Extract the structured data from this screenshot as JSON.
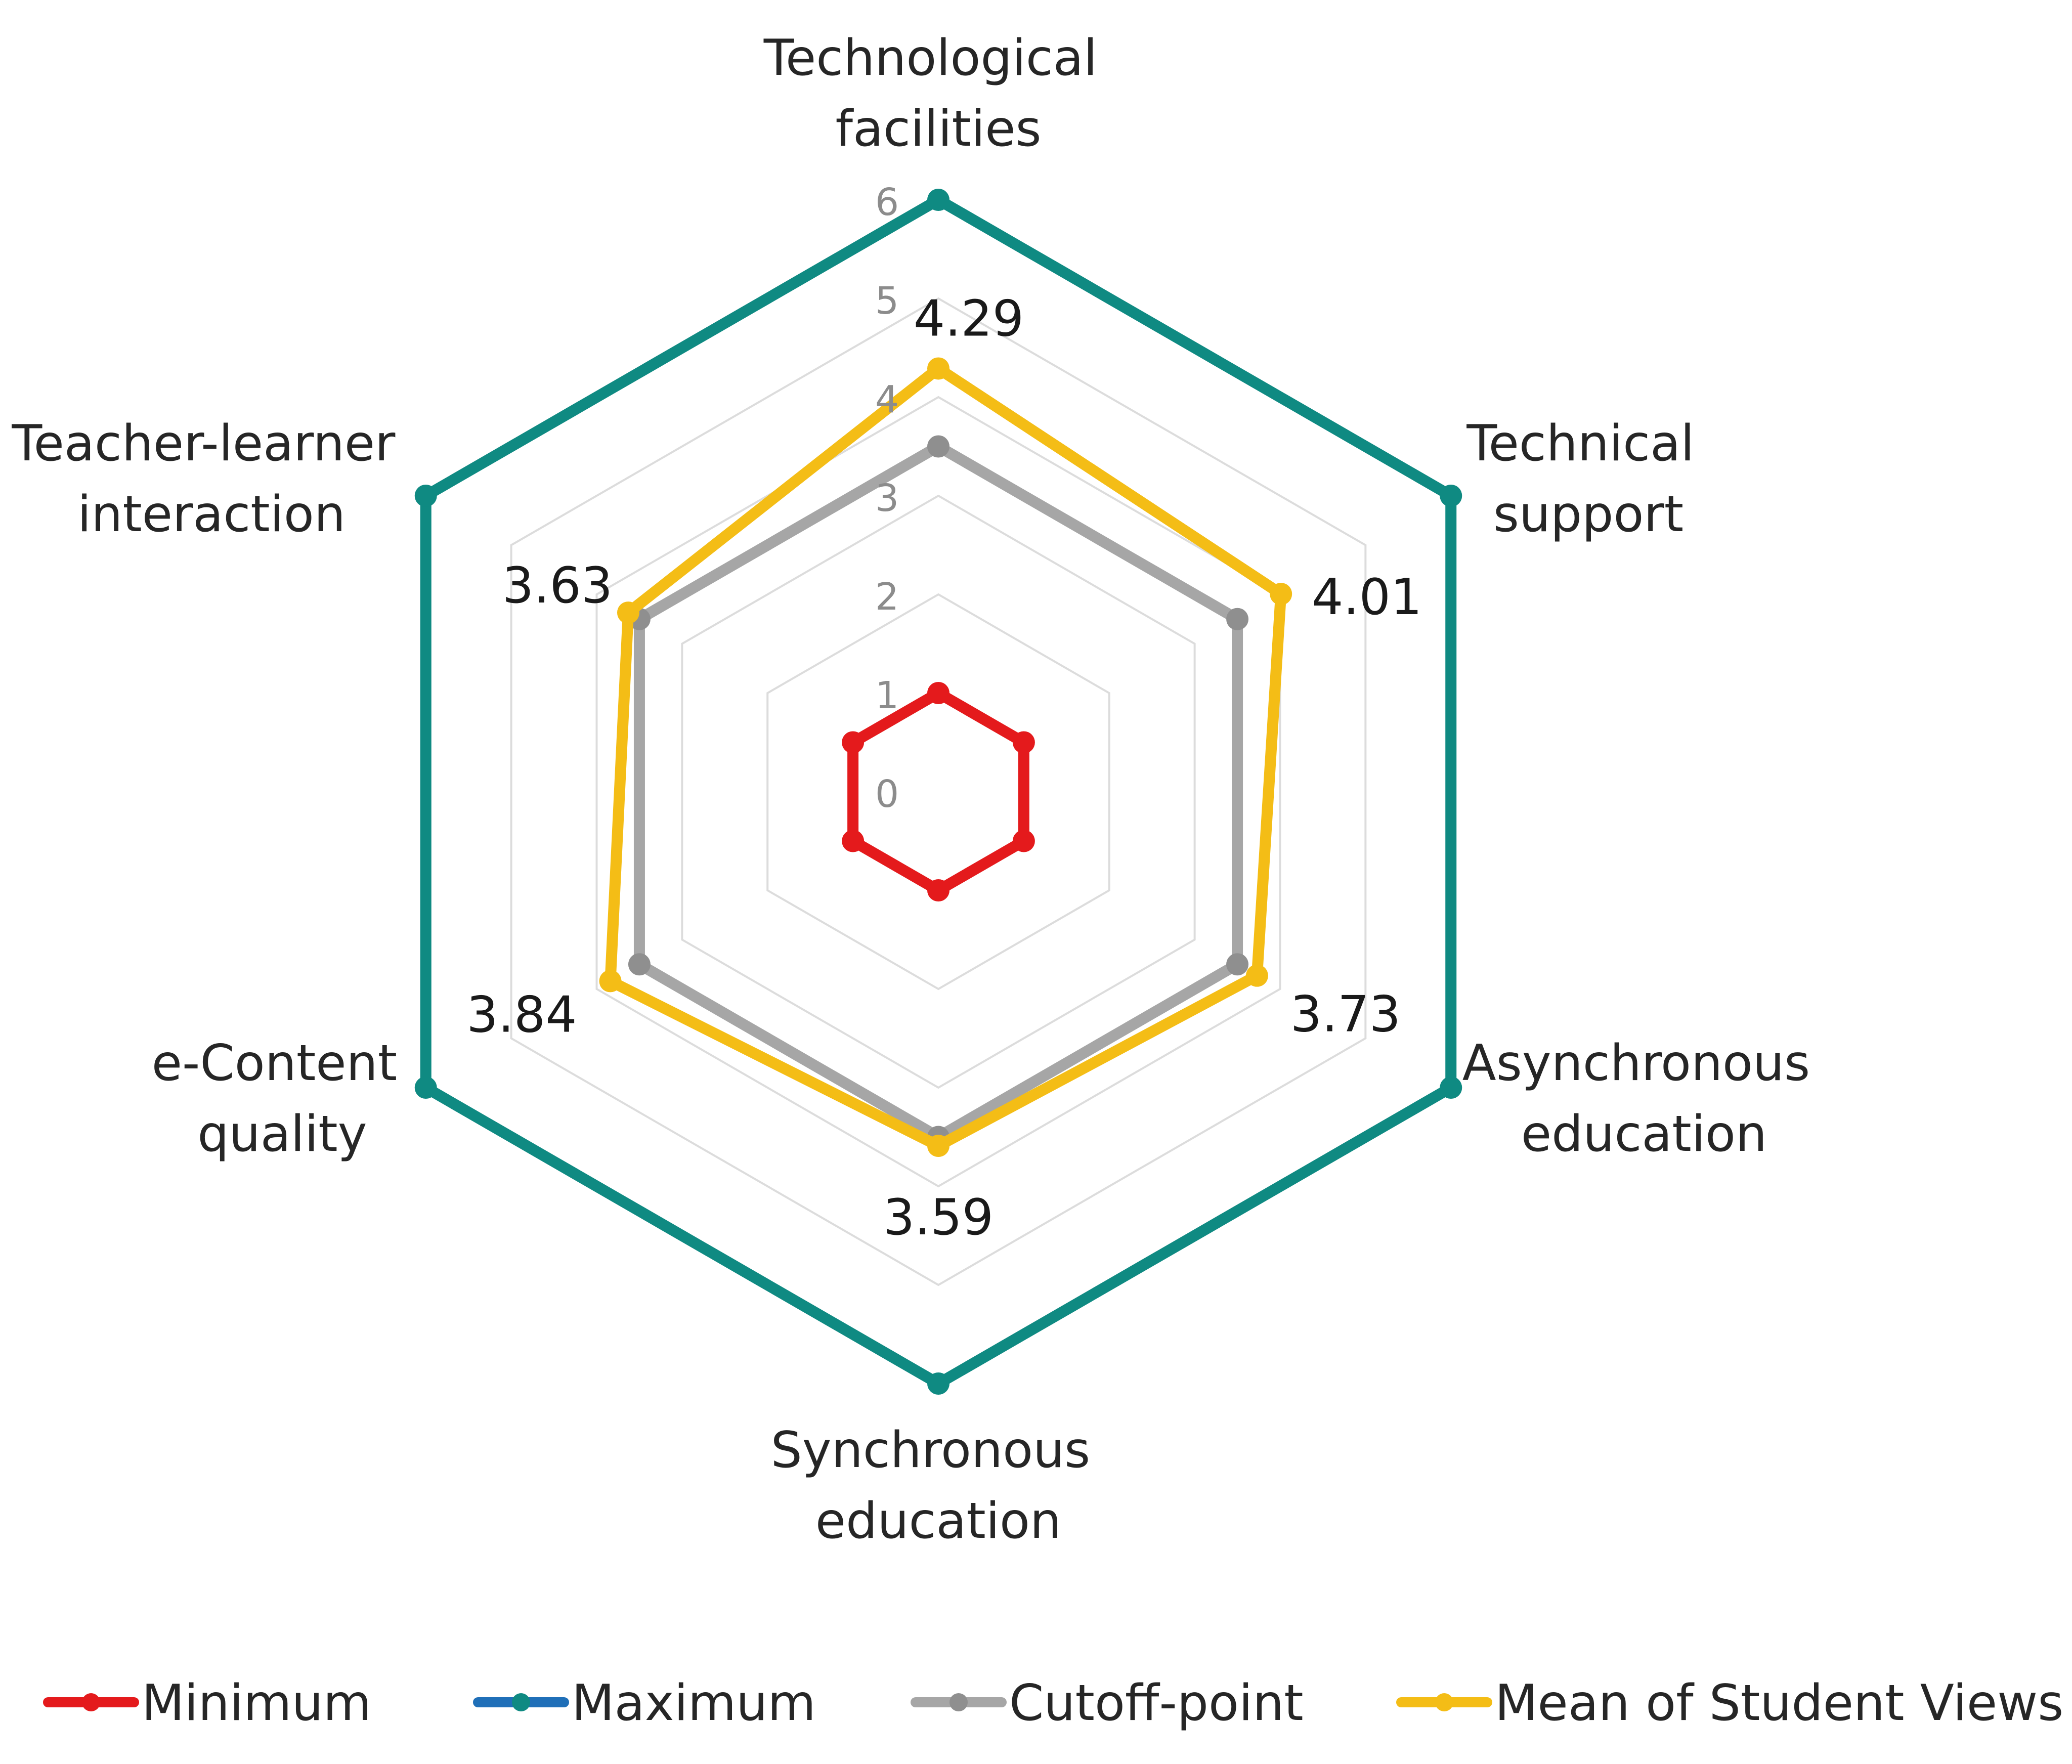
{
  "chart_data": {
    "type": "radar",
    "categories": [
      "Technological facilities",
      "Technical support",
      "Asynchronous education",
      "Synchronous education",
      "e-Content quality",
      "Teacher-learner interaction"
    ],
    "category_lines": [
      [
        "Technological",
        "facilities"
      ],
      [
        "Technical",
        "support"
      ],
      [
        "Asynchronous",
        "education"
      ],
      [
        "Synchronous",
        "education"
      ],
      [
        "e-Content",
        "quality"
      ],
      [
        "Teacher-learner",
        "interaction"
      ]
    ],
    "rlim": [
      0,
      6
    ],
    "ticks": [
      "0",
      "1",
      "2",
      "3",
      "4",
      "5",
      "6"
    ],
    "grid": true,
    "legend_position": "bottom",
    "series": [
      {
        "name": "Minimum",
        "values": [
          1,
          1,
          1,
          1,
          1,
          1
        ],
        "color": "#e41a1c",
        "marker_color": "#e41a1c"
      },
      {
        "name": "Maximum",
        "values": [
          6,
          6,
          6,
          6,
          6,
          6
        ],
        "color": "#0f8a82",
        "marker_color": "#0f8a82",
        "legend_line_color": "#1f6fb8"
      },
      {
        "name": "Cutoff-point",
        "values": [
          3.5,
          3.5,
          3.5,
          3.5,
          3.5,
          3.5
        ],
        "color": "#a6a6a6",
        "marker_color": "#8f8f8f"
      },
      {
        "name": "Mean of Student Views",
        "values": [
          4.29,
          4.01,
          3.73,
          3.59,
          3.84,
          3.63
        ],
        "color": "#f4bd16",
        "marker_color": "#f4bd16"
      }
    ],
    "data_labels": [
      "4.29",
      "4.01",
      "3.73",
      "3.59",
      "3.84",
      "3.63"
    ],
    "gridline_color": "#dcdcdc"
  }
}
